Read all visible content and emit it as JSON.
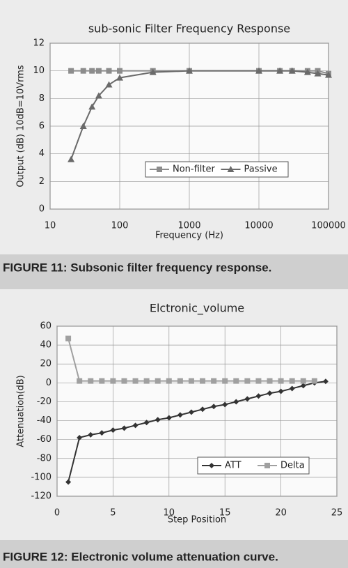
{
  "chart_data": [
    {
      "type": "line",
      "title": "sub-sonic Filter Frequency Response",
      "caption": "FIGURE 11: Subsonic filter frequency response.",
      "xlabel": "Frequency (Hz)",
      "ylabel": "Output (dB) 10dB=10Vrms",
      "xscale": "log",
      "x": [
        20,
        30,
        40,
        50,
        70,
        100,
        300,
        1000,
        10000,
        20000,
        30000,
        50000,
        70000,
        100000
      ],
      "series": [
        {
          "name": "Non-filter",
          "color": "#8c8c8c",
          "marker": "square",
          "values": [
            10,
            10,
            10,
            10,
            10,
            10,
            10,
            10,
            10,
            10,
            10,
            10,
            10,
            9.8
          ]
        },
        {
          "name": "Passive",
          "color": "#6a6a6a",
          "marker": "triangle",
          "values": [
            3.6,
            6,
            7.4,
            8.2,
            9,
            9.5,
            9.9,
            10,
            10,
            10,
            10,
            9.9,
            9.8,
            9.7
          ]
        }
      ],
      "xlim": [
        10,
        100000
      ],
      "xticks": [
        10,
        100,
        1000,
        10000,
        100000
      ],
      "ylim": [
        0,
        12
      ],
      "yticks": [
        0,
        2,
        4,
        6,
        8,
        10,
        12
      ],
      "grid": true,
      "legend": "lower right"
    },
    {
      "type": "line",
      "title": "Elctronic_volume",
      "caption": "FIGURE 12: Electronic volume attenuation curve.",
      "xlabel": "Step Position",
      "ylabel": "Attenuation(dB)",
      "xscale": "linear",
      "x": [
        1,
        2,
        3,
        4,
        5,
        6,
        7,
        8,
        9,
        10,
        11,
        12,
        13,
        14,
        15,
        16,
        17,
        18,
        19,
        20,
        21,
        22,
        23,
        24
      ],
      "series": [
        {
          "name": "ATT",
          "color": "#333333",
          "marker": "diamond",
          "values": [
            -105,
            -58,
            -55,
            -53,
            -50,
            -48,
            -45,
            -42,
            -39,
            -37,
            -34,
            -31,
            -28,
            -25,
            -23,
            -20,
            -17,
            -14,
            -11,
            -9,
            -6,
            -3,
            0,
            1.5
          ]
        },
        {
          "name": "Delta",
          "color": "#a0a0a0",
          "marker": "square",
          "values": [
            47,
            2,
            2,
            2,
            2,
            2,
            2,
            2,
            2,
            2,
            2,
            2,
            2,
            2,
            2,
            2,
            2,
            2,
            2,
            2,
            2,
            2,
            2,
            null
          ]
        }
      ],
      "xlim": [
        0,
        25
      ],
      "xticks": [
        0,
        5,
        10,
        15,
        20,
        25
      ],
      "ylim": [
        -120,
        60
      ],
      "yticks": [
        -120,
        -100,
        -80,
        -60,
        -40,
        -20,
        0,
        20,
        40,
        60
      ],
      "grid": true,
      "legend": "lower right"
    }
  ]
}
